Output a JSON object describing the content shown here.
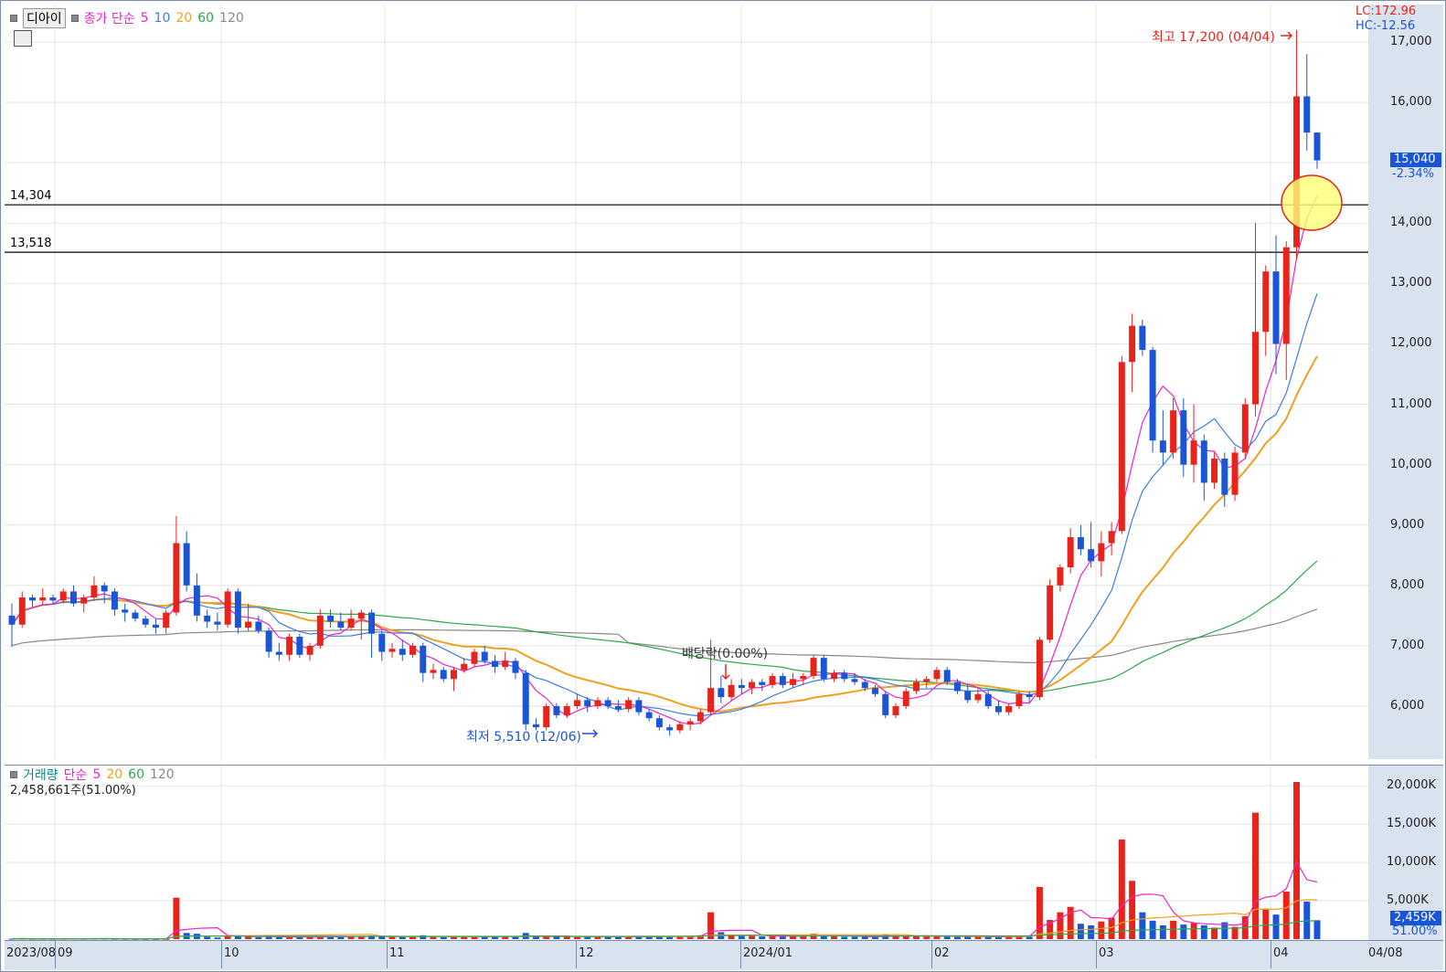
{
  "header": {
    "name": "디아이",
    "ma_label": "종가 단순",
    "ma_periods": [
      "5",
      "10",
      "20",
      "60",
      "120"
    ]
  },
  "right_info": {
    "lc": "LC:172.96",
    "hc": "HC:-12.56"
  },
  "price_axis": {
    "ticks": [
      "17,000",
      "16,000",
      "15,000",
      "14,000",
      "13,000",
      "12,000",
      "11,000",
      "10,000",
      "9,000",
      "8,000",
      "7,000",
      "6,000"
    ],
    "current_price": "15,040",
    "change": "-2.34%"
  },
  "hlines": {
    "upper": "14,304",
    "lower": "13,518"
  },
  "annotations": {
    "high": "최고 17,200 (04/04)",
    "low": "최저 5,510 (12/06)",
    "dividend": "배당락(0.00%)"
  },
  "volume_legend": {
    "label": "거래량",
    "ma_label": "단순",
    "ma_periods": [
      "5",
      "20",
      "60",
      "120"
    ],
    "value": "2,458,661주(51.00%)"
  },
  "volume_axis": {
    "ticks": [
      "20,000K",
      "15,000K",
      "10,000K",
      "5,000K"
    ],
    "current": "2,459K",
    "ratio": "51.00%"
  },
  "date_axis": [
    "2023/08",
    "09",
    "10",
    "11",
    "12",
    "2024/01",
    "02",
    "03",
    "04",
    "04/08"
  ],
  "colors": {
    "up": "#e8231c",
    "down": "#1a55d8",
    "ma5": "#ee22cc",
    "ma10": "#3b7de0",
    "ma20": "#f0a020",
    "ma60": "#2aa84a",
    "ma120": "#888888"
  },
  "chart_data": {
    "type": "candlestick",
    "ohlc_daily": [
      [
        7500,
        7700,
        6980,
        7350
      ],
      [
        7350,
        7900,
        7300,
        7800
      ],
      [
        7800,
        7850,
        7650,
        7750
      ],
      [
        7750,
        7950,
        7680,
        7800
      ],
      [
        7800,
        7850,
        7700,
        7750
      ],
      [
        7750,
        7950,
        7700,
        7900
      ],
      [
        7900,
        8000,
        7650,
        7700
      ],
      [
        7700,
        7850,
        7550,
        7800
      ],
      [
        7800,
        8150,
        7750,
        8000
      ],
      [
        8000,
        8050,
        7700,
        7900
      ],
      [
        7900,
        7950,
        7500,
        7600
      ],
      [
        7600,
        7700,
        7400,
        7550
      ],
      [
        7550,
        7600,
        7400,
        7450
      ],
      [
        7450,
        7500,
        7300,
        7350
      ],
      [
        7350,
        7450,
        7200,
        7300
      ],
      [
        7300,
        7600,
        7200,
        7550
      ],
      [
        7550,
        9150,
        7500,
        8700
      ],
      [
        8700,
        8900,
        7900,
        8000
      ],
      [
        8000,
        8200,
        7400,
        7500
      ],
      [
        7500,
        7600,
        7300,
        7400
      ],
      [
        7400,
        7550,
        7250,
        7350
      ],
      [
        7350,
        7950,
        7300,
        7900
      ],
      [
        7900,
        7950,
        7200,
        7300
      ],
      [
        7300,
        7700,
        7250,
        7400
      ],
      [
        7400,
        7500,
        7200,
        7250
      ],
      [
        7250,
        7300,
        6800,
        6900
      ],
      [
        6900,
        7050,
        6750,
        6850
      ],
      [
        6850,
        7200,
        6750,
        7150
      ],
      [
        7150,
        7200,
        6800,
        6850
      ],
      [
        6850,
        7050,
        6750,
        7000
      ],
      [
        7000,
        7600,
        6950,
        7500
      ],
      [
        7500,
        7600,
        7300,
        7400
      ],
      [
        7400,
        7550,
        7250,
        7300
      ],
      [
        7300,
        7600,
        7250,
        7450
      ],
      [
        7450,
        7600,
        7100,
        7550
      ],
      [
        7550,
        7600,
        6800,
        7200
      ],
      [
        7200,
        7250,
        6750,
        6900
      ],
      [
        6900,
        7050,
        6800,
        6950
      ],
      [
        6950,
        7100,
        6750,
        6850
      ],
      [
        6850,
        7050,
        6800,
        7000
      ],
      [
        7000,
        7050,
        6400,
        6550
      ],
      [
        6550,
        6700,
        6450,
        6600
      ],
      [
        6600,
        6650,
        6400,
        6450
      ],
      [
        6450,
        6650,
        6250,
        6600
      ],
      [
        6600,
        6800,
        6550,
        6700
      ],
      [
        6700,
        6950,
        6650,
        6900
      ],
      [
        6900,
        7000,
        6700,
        6750
      ],
      [
        6750,
        6850,
        6550,
        6650
      ],
      [
        6650,
        6900,
        6600,
        6750
      ],
      [
        6750,
        6800,
        6450,
        6550
      ],
      [
        6550,
        6600,
        5600,
        5700
      ],
      [
        5700,
        5800,
        5600,
        5650
      ],
      [
        5650,
        6050,
        5600,
        6000
      ],
      [
        6000,
        6050,
        5800,
        5850
      ],
      [
        5850,
        6050,
        5800,
        6000
      ],
      [
        6000,
        6200,
        5950,
        6100
      ],
      [
        6100,
        6150,
        5900,
        6000
      ],
      [
        6000,
        6150,
        5950,
        6100
      ],
      [
        6100,
        6150,
        5950,
        6000
      ],
      [
        6000,
        6100,
        5900,
        5950
      ],
      [
        5950,
        6150,
        5900,
        6100
      ],
      [
        6100,
        6150,
        5850,
        5900
      ],
      [
        5900,
        5950,
        5750,
        5800
      ],
      [
        5800,
        5850,
        5600,
        5650
      ],
      [
        5650,
        5700,
        5510,
        5600
      ],
      [
        5600,
        5750,
        5550,
        5700
      ],
      [
        5700,
        5800,
        5600,
        5750
      ],
      [
        5750,
        5950,
        5700,
        5900
      ],
      [
        5900,
        7100,
        5850,
        6300
      ],
      [
        6300,
        6500,
        6050,
        6150
      ],
      [
        6150,
        6450,
        6100,
        6350
      ],
      [
        6350,
        6450,
        6200,
        6300
      ],
      [
        6300,
        6450,
        6200,
        6400
      ],
      [
        6400,
        6450,
        6250,
        6350
      ],
      [
        6350,
        6550,
        6300,
        6500
      ],
      [
        6500,
        6550,
        6300,
        6350
      ],
      [
        6350,
        6550,
        6300,
        6450
      ],
      [
        6450,
        6550,
        6350,
        6500
      ],
      [
        6500,
        6850,
        6450,
        6800
      ],
      [
        6800,
        6850,
        6400,
        6450
      ],
      [
        6450,
        6600,
        6400,
        6550
      ],
      [
        6550,
        6600,
        6400,
        6450
      ],
      [
        6450,
        6550,
        6350,
        6400
      ],
      [
        6400,
        6450,
        6250,
        6300
      ],
      [
        6300,
        6350,
        6150,
        6200
      ],
      [
        6200,
        6250,
        5800,
        5850
      ],
      [
        5850,
        6050,
        5800,
        6000
      ],
      [
        6000,
        6300,
        5950,
        6250
      ],
      [
        6250,
        6450,
        6200,
        6400
      ],
      [
        6400,
        6500,
        6300,
        6450
      ],
      [
        6450,
        6650,
        6400,
        6600
      ],
      [
        6600,
        6650,
        6350,
        6400
      ],
      [
        6400,
        6450,
        6200,
        6250
      ],
      [
        6250,
        6350,
        6050,
        6100
      ],
      [
        6100,
        6300,
        6050,
        6200
      ],
      [
        6200,
        6250,
        5950,
        6000
      ],
      [
        6000,
        6100,
        5850,
        5900
      ],
      [
        5900,
        6050,
        5850,
        6000
      ],
      [
        6000,
        6250,
        5950,
        6200
      ],
      [
        6200,
        6250,
        6050,
        6150
      ],
      [
        6150,
        7150,
        6100,
        7100
      ],
      [
        7100,
        8100,
        7050,
        8000
      ],
      [
        8000,
        8350,
        7900,
        8300
      ],
      [
        8300,
        8950,
        8200,
        8800
      ],
      [
        8800,
        9000,
        8500,
        8600
      ],
      [
        8600,
        9050,
        8300,
        8400
      ],
      [
        8400,
        8900,
        8150,
        8700
      ],
      [
        8700,
        9050,
        8500,
        8900
      ],
      [
        8900,
        11800,
        8850,
        11700
      ],
      [
        11700,
        12500,
        11200,
        12300
      ],
      [
        12300,
        12400,
        11800,
        11900
      ],
      [
        11900,
        11950,
        10200,
        10400
      ],
      [
        10400,
        10900,
        10000,
        10200
      ],
      [
        10200,
        11100,
        10100,
        10900
      ],
      [
        10900,
        11100,
        9800,
        10000
      ],
      [
        10000,
        11000,
        9700,
        10400
      ],
      [
        10400,
        10500,
        9400,
        9700
      ],
      [
        9700,
        10200,
        9600,
        10100
      ],
      [
        10100,
        10200,
        9300,
        9500
      ],
      [
        9500,
        10300,
        9400,
        10200
      ],
      [
        10200,
        11100,
        10100,
        11000
      ],
      [
        11000,
        14000,
        10800,
        12200
      ],
      [
        12200,
        13300,
        11800,
        13200
      ],
      [
        13200,
        13800,
        11500,
        12000
      ],
      [
        12000,
        13700,
        11400,
        13600
      ],
      [
        13600,
        17200,
        13400,
        16100
      ],
      [
        16100,
        16800,
        15200,
        15500
      ],
      [
        15500,
        15500,
        14900,
        15040
      ]
    ],
    "volume_k": [
      50,
      60,
      40,
      45,
      40,
      50,
      70,
      45,
      80,
      60,
      40,
      40,
      30,
      30,
      30,
      40,
      5400,
      800,
      700,
      300,
      200,
      400,
      500,
      300,
      250,
      300,
      250,
      300,
      250,
      250,
      400,
      350,
      300,
      350,
      350,
      450,
      350,
      300,
      300,
      300,
      500,
      300,
      250,
      300,
      300,
      350,
      350,
      300,
      350,
      300,
      800,
      300,
      350,
      300,
      300,
      350,
      300,
      300,
      300,
      300,
      350,
      300,
      300,
      400,
      350,
      300,
      350,
      500,
      3500,
      900,
      500,
      400,
      400,
      350,
      400,
      350,
      400,
      350,
      700,
      400,
      350,
      300,
      300,
      300,
      300,
      600,
      350,
      400,
      400,
      350,
      400,
      350,
      300,
      300,
      300,
      350,
      300,
      300,
      400,
      300,
      6800,
      2500,
      3500,
      4200,
      2000,
      1800,
      2300,
      2800,
      13000,
      7600,
      3500,
      2400,
      1800,
      2400,
      1900,
      2100,
      1800,
      1500,
      2200,
      1600,
      3000,
      16500,
      4000,
      3200,
      6200,
      20500,
      4900,
      2459
    ]
  }
}
